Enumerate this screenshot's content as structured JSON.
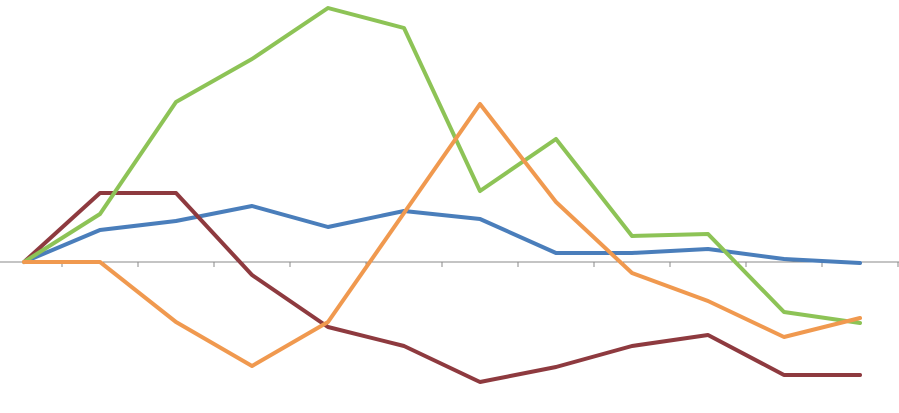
{
  "chart_data": {
    "type": "line",
    "categories": [
      null,
      null,
      null,
      null,
      null,
      null,
      null,
      null,
      null,
      null,
      null,
      null
    ],
    "ylim": [
      -15.1,
      26.2
    ],
    "series": [
      {
        "color": "#4a7ebb",
        "values": [
          0,
          3.2,
          4.1,
          5.6,
          3.5,
          5.1,
          4.3,
          0.9,
          0.9,
          1.3,
          0.3,
          -0.1
        ]
      },
      {
        "color": "#8e3a3f",
        "values": [
          0,
          6.9,
          6.9,
          -1.3,
          -6.5,
          -8.4,
          -12,
          -10.5,
          -8.4,
          -7.3,
          -11.3,
          -11.3
        ]
      },
      {
        "color": "#8dc356",
        "values": [
          0,
          4.8,
          16,
          20.3,
          25.4,
          23.4,
          7.1,
          12.3,
          2.6,
          2.8,
          -5,
          -6.1
        ]
      },
      {
        "color": "#f0994f",
        "values": [
          0,
          0,
          -6,
          -10.4,
          -6,
          4.9,
          15.8,
          6,
          -1.1,
          -3.9,
          -7.5,
          -5.6
        ]
      }
    ]
  }
}
